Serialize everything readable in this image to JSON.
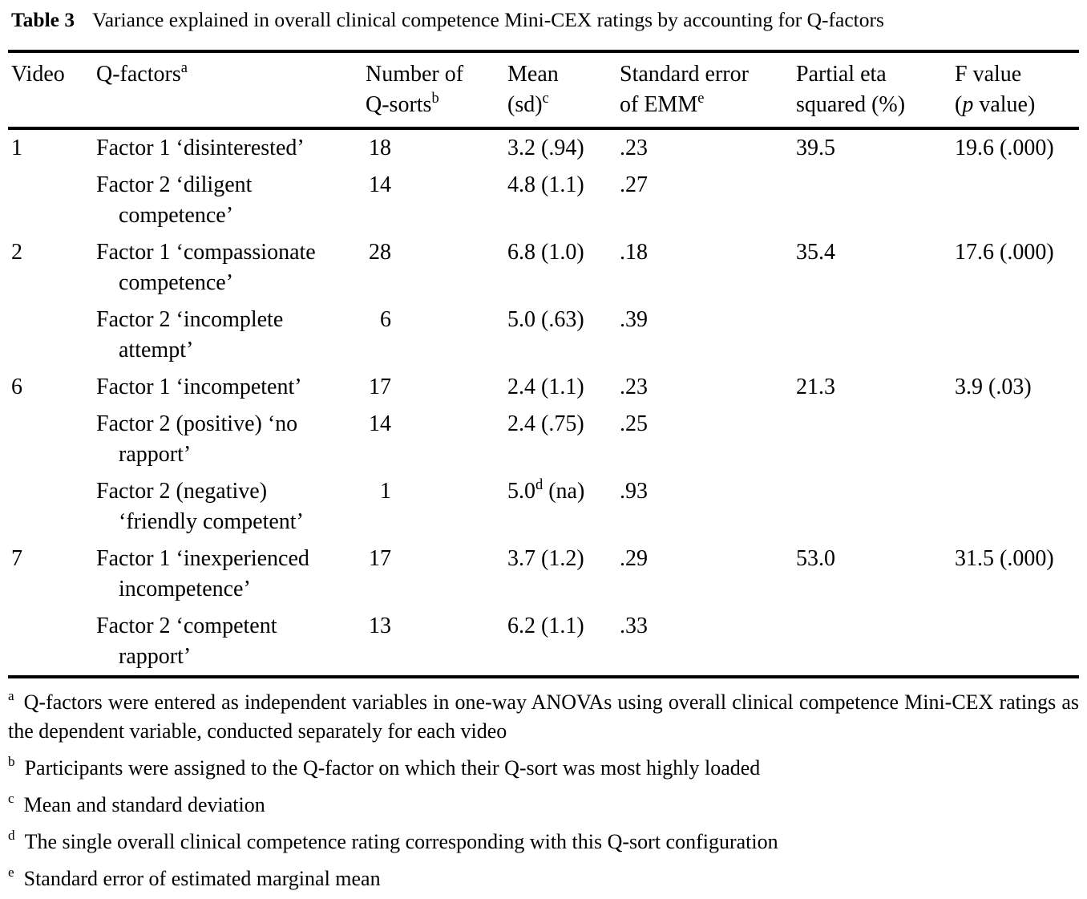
{
  "caption": {
    "label": "Table 3",
    "text": "Variance explained in overall clinical competence Mini-CEX ratings by accounting for Q-factors"
  },
  "table": {
    "columns": [
      {
        "id": "video",
        "lines": [
          [
            "Video"
          ]
        ]
      },
      {
        "id": "qfactors",
        "lines": [
          [
            "Q-factors",
            {
              "t": "a",
              "s": "sup"
            }
          ]
        ]
      },
      {
        "id": "qsorts",
        "lines": [
          [
            "Number of"
          ],
          [
            "Q-sorts",
            {
              "t": "b",
              "s": "sup"
            }
          ]
        ]
      },
      {
        "id": "mean",
        "lines": [
          [
            "Mean"
          ],
          [
            "(sd)",
            {
              "t": "c",
              "s": "sup"
            }
          ]
        ]
      },
      {
        "id": "se",
        "lines": [
          [
            "Standard error"
          ],
          [
            "of EMM",
            {
              "t": "e",
              "s": "sup"
            }
          ]
        ]
      },
      {
        "id": "eta",
        "lines": [
          [
            "Partial eta"
          ],
          [
            "squared (%)"
          ]
        ]
      },
      {
        "id": "fvalue",
        "lines": [
          [
            "F value"
          ],
          [
            "(",
            {
              "t": "p",
              "s": "i"
            },
            " value)"
          ]
        ]
      }
    ],
    "rows": [
      {
        "video": "1",
        "qfactor": [
          "Factor 1 ‘disinterested’"
        ],
        "n": "18",
        "mean": [
          "3.2 (.94)"
        ],
        "se": ".23",
        "eta": "39.5",
        "f": "19.6 (.000)"
      },
      {
        "video": "",
        "qfactor": [
          "Factor 2 ‘diligent",
          {
            "s": "br"
          },
          "competence’"
        ],
        "n": "14",
        "mean": [
          "4.8 (1.1)"
        ],
        "se": ".27",
        "eta": "",
        "f": ""
      },
      {
        "video": "2",
        "qfactor": [
          "Factor 1 ‘compassionate",
          {
            "s": "br"
          },
          "competence’"
        ],
        "n": "28",
        "mean": [
          "6.8 (1.0)"
        ],
        "se": ".18",
        "eta": "35.4",
        "f": "17.6 (.000)"
      },
      {
        "video": "",
        "qfactor": [
          "Factor 2 ‘incomplete",
          {
            "s": "br"
          },
          "attempt’"
        ],
        "n": "6",
        "mean": [
          "5.0 (.63)"
        ],
        "se": ".39",
        "eta": "",
        "f": ""
      },
      {
        "video": "6",
        "qfactor": [
          "Factor 1 ‘incompetent’"
        ],
        "n": "17",
        "mean": [
          "2.4 (1.1)"
        ],
        "se": ".23",
        "eta": "21.3",
        "f": "3.9 (.03)"
      },
      {
        "video": "",
        "qfactor": [
          "Factor 2 (positive) ‘no",
          {
            "s": "br"
          },
          "rapport’"
        ],
        "n": "14",
        "mean": [
          "2.4 (.75)"
        ],
        "se": ".25",
        "eta": "",
        "f": ""
      },
      {
        "video": "",
        "qfactor": [
          "Factor 2 (negative)",
          {
            "s": "br"
          },
          "‘friendly competent’"
        ],
        "n": "1",
        "mean": [
          "5.0",
          {
            "t": "d",
            "s": "sup"
          },
          " (na)"
        ],
        "se": ".93",
        "eta": "",
        "f": ""
      },
      {
        "video": "7",
        "qfactor": [
          "Factor 1 ‘inexperienced",
          {
            "s": "br"
          },
          "incompetence’"
        ],
        "n": "17",
        "mean": [
          "3.7 (1.2)"
        ],
        "se": ".29",
        "eta": "53.0",
        "f": "31.5 (.000)"
      },
      {
        "video": "",
        "qfactor": [
          "Factor 2 ‘competent",
          {
            "s": "br"
          },
          "rapport’"
        ],
        "n": "13",
        "mean": [
          "6.2 (1.1)"
        ],
        "se": ".33",
        "eta": "",
        "f": ""
      }
    ]
  },
  "footnotes": [
    {
      "marker": "a",
      "text": "Q-factors were entered as independent variables in one-way ANOVAs using overall clinical competence Mini-CEX ratings as the dependent variable, conducted separately for each video"
    },
    {
      "marker": "b",
      "text": "Participants were assigned to the Q-factor on which their Q-sort was most highly loaded"
    },
    {
      "marker": "c",
      "text": "Mean and standard deviation"
    },
    {
      "marker": "d",
      "text": "The single overall clinical competence rating corresponding with this Q-sort configuration"
    },
    {
      "marker": "e",
      "text": "Standard error of estimated marginal mean"
    }
  ]
}
